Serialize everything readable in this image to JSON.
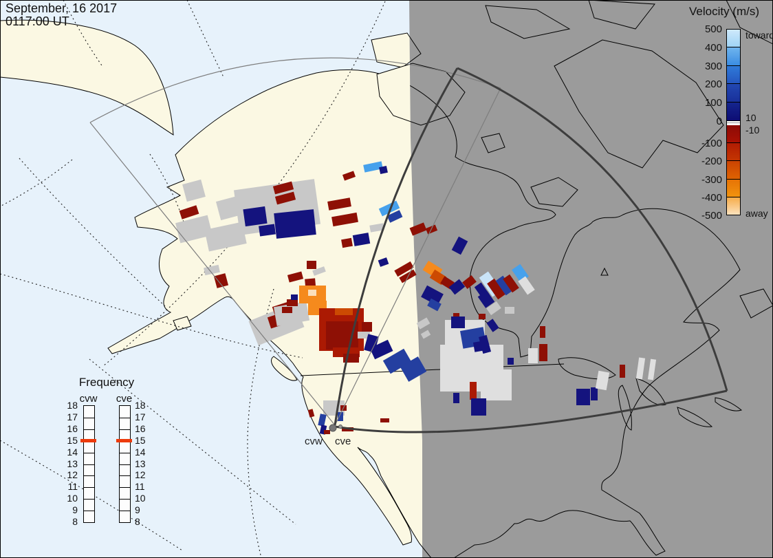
{
  "header": {
    "date_line": "September, 16 2017",
    "time_line": "0117:00 UT"
  },
  "velocity_legend": {
    "title": "Velocity (m/s)",
    "toward_label": "toward",
    "away_label": "away",
    "threshold_upper": "10",
    "threshold_lower": "-10",
    "tick_labels_toward": [
      "500",
      "400",
      "300",
      "200",
      "100",
      "0"
    ],
    "tick_labels_away": [
      "-100",
      "-200",
      "-300",
      "-400",
      "-500"
    ],
    "segments_toward": [
      [
        "#cfe9fb",
        "#9fd4f5"
      ],
      [
        "#6fb5ee",
        "#3a8ce2"
      ],
      [
        "#2f7ad8",
        "#2557c0"
      ],
      [
        "#2248b2",
        "#19309a"
      ],
      [
        "#15258e",
        "#0d0d74"
      ]
    ],
    "segments_away": [
      [
        "#8c0b06",
        "#a91104"
      ],
      [
        "#b21c03",
        "#c33502"
      ],
      [
        "#cc4302",
        "#de6302"
      ],
      [
        "#e77305",
        "#f1930f"
      ],
      [
        "#f6ac4a",
        "#fce2bd"
      ]
    ]
  },
  "frequency_panel": {
    "title": "Frequency",
    "columns": [
      "cvw",
      "cve"
    ],
    "scale_labels": [
      "18",
      "17",
      "16",
      "15",
      "14",
      "13",
      "12",
      "11",
      "10",
      "9",
      "8"
    ],
    "marker_tick_label": "15",
    "marker_color": "#ed3b0c"
  },
  "map": {
    "radar_labels": {
      "west": "cvw",
      "east": "cve"
    },
    "colors": {
      "day_ocean": "#e7f2fb",
      "day_land": "#fbf8e3",
      "night": "#9b9b9b",
      "coast": "#000000",
      "fov_thin": "#7d7d7d",
      "fov_thick": "#3d3d3d",
      "grid_dotted": "#222222"
    },
    "palette": {
      "n": "#14137e",
      "b": "#243fa0",
      "B": "#2f6fc0",
      "s": "#46a1ec",
      "p": "#c9e4f8",
      "d": "#8e1005",
      "r": "#ab1a03",
      "o": "#cc4a02",
      "O": "#f58a1d",
      "h": "#fbdfbc",
      "g": "#c8c8c8",
      "G": "#dfdfdf"
    },
    "cells": [
      [
        258,
        318,
        48,
        30,
        "g",
        -14
      ],
      [
        262,
        302,
        26,
        13,
        "d",
        -18
      ],
      [
        268,
        264,
        28,
        26,
        "g",
        -15
      ],
      [
        297,
        387,
        22,
        11,
        "g",
        -12
      ],
      [
        313,
        399,
        17,
        18,
        "d",
        -15
      ],
      [
        317,
        288,
        36,
        28,
        "g",
        -15
      ],
      [
        300,
        328,
        56,
        32,
        "g",
        -12
      ],
      [
        344,
        268,
        118,
        66,
        "g",
        -8
      ],
      [
        355,
        302,
        32,
        25,
        "n",
        -8
      ],
      [
        377,
        327,
        23,
        15,
        "n",
        -8
      ],
      [
        400,
        307,
        58,
        37,
        "n",
        -6
      ],
      [
        398,
        267,
        28,
        12,
        "d",
        -15
      ],
      [
        401,
        282,
        28,
        12,
        "d",
        -15
      ],
      [
        419,
        397,
        21,
        11,
        "d",
        -15
      ],
      [
        455,
        390,
        18,
        8,
        "g",
        -20
      ],
      [
        477,
        290,
        33,
        13,
        "d",
        -10
      ],
      [
        483,
        312,
        37,
        14,
        "d",
        -10
      ],
      [
        497,
        347,
        15,
        12,
        "d",
        -10
      ],
      [
        514,
        340,
        23,
        16,
        "n",
        -10
      ],
      [
        538,
        326,
        20,
        10,
        "g",
        -10
      ],
      [
        529,
        237,
        27,
        11,
        "s",
        -12
      ],
      [
        552,
        242,
        11,
        10,
        "n",
        -12
      ],
      [
        499,
        251,
        17,
        9,
        "d",
        -20
      ],
      [
        552,
        297,
        28,
        12,
        "s",
        -25
      ],
      [
        564,
        309,
        20,
        11,
        "b",
        -25
      ],
      [
        366,
        452,
        72,
        38,
        "g",
        -22
      ],
      [
        391,
        458,
        19,
        17,
        "d",
        -18
      ],
      [
        397,
        442,
        25,
        12,
        "d",
        -18
      ],
      [
        400,
        442,
        48,
        28,
        "g",
        -10
      ],
      [
        444,
        405,
        15,
        21,
        "d",
        -5
      ],
      [
        435,
        415,
        39,
        26,
        "O",
        0
      ],
      [
        448,
        437,
        27,
        21,
        "O",
        0
      ],
      [
        417,
        435,
        16,
        10,
        "d",
        0
      ],
      [
        423,
        428,
        10,
        8,
        "n",
        0
      ],
      [
        410,
        446,
        15,
        9,
        "d",
        0
      ],
      [
        446,
        379,
        14,
        12,
        "d",
        0
      ],
      [
        448,
        421,
        12,
        9,
        "h",
        0
      ],
      [
        464,
        448,
        65,
        62,
        "r",
        0
      ],
      [
        474,
        467,
        47,
        41,
        "d",
        0
      ],
      [
        487,
        448,
        26,
        10,
        "o",
        0
      ],
      [
        484,
        505,
        39,
        14,
        "r",
        0
      ],
      [
        499,
        514,
        23,
        13,
        "d",
        0
      ],
      [
        526,
        468,
        15,
        14,
        "d",
        0
      ],
      [
        520,
        482,
        18,
        10,
        "g",
        0
      ],
      [
        551,
        376,
        13,
        10,
        "n",
        -20
      ],
      [
        574,
        386,
        27,
        10,
        "d",
        -30
      ],
      [
        581,
        397,
        24,
        9,
        "d",
        -30
      ],
      [
        532,
        487,
        16,
        24,
        "n",
        15
      ],
      [
        540,
        499,
        29,
        18,
        "n",
        -25
      ],
      [
        560,
        514,
        35,
        22,
        "b",
        -30
      ],
      [
        586,
        524,
        30,
        25,
        "b",
        -30
      ],
      [
        607,
        465,
        17,
        10,
        "g",
        -30
      ],
      [
        613,
        482,
        12,
        8,
        "g",
        -30
      ],
      [
        470,
        582,
        31,
        22,
        "g",
        0
      ],
      [
        464,
        602,
        9,
        17,
        "b",
        12
      ],
      [
        466,
        618,
        8,
        13,
        "n",
        12
      ],
      [
        449,
        595,
        7,
        11,
        "d",
        -15
      ],
      [
        471,
        625,
        9,
        6,
        "d",
        0
      ],
      [
        495,
        589,
        9,
        8,
        "d",
        0
      ],
      [
        491,
        599,
        8,
        13,
        "b",
        0
      ],
      [
        497,
        621,
        17,
        6,
        "d",
        0
      ],
      [
        553,
        608,
        13,
        6,
        "d",
        0
      ],
      [
        597,
        327,
        22,
        12,
        "d",
        -22
      ],
      [
        620,
        329,
        15,
        9,
        "d",
        -22
      ],
      [
        661,
        346,
        15,
        22,
        "n",
        28
      ],
      [
        617,
        384,
        24,
        16,
        "O",
        32
      ],
      [
        627,
        396,
        20,
        14,
        "o",
        32
      ],
      [
        642,
        405,
        17,
        12,
        "d",
        32
      ],
      [
        615,
        420,
        27,
        19,
        "n",
        28
      ],
      [
        623,
        437,
        17,
        12,
        "b",
        28
      ],
      [
        655,
        410,
        19,
        14,
        "n",
        -38
      ],
      [
        674,
        404,
        17,
        12,
        "d",
        -38
      ],
      [
        695,
        412,
        12,
        22,
        "n",
        -35
      ],
      [
        705,
        396,
        16,
        34,
        "p",
        -35
      ],
      [
        715,
        406,
        13,
        28,
        "d",
        -35
      ],
      [
        727,
        402,
        13,
        26,
        "b",
        -35
      ],
      [
        737,
        400,
        12,
        24,
        "d",
        -35
      ],
      [
        749,
        386,
        15,
        22,
        "s",
        -35
      ],
      [
        759,
        403,
        13,
        24,
        "G",
        -35
      ],
      [
        699,
        425,
        16,
        20,
        "n",
        -35
      ],
      [
        709,
        442,
        18,
        12,
        "g",
        -35
      ],
      [
        734,
        446,
        14,
        10,
        "g",
        0
      ],
      [
        659,
        455,
        9,
        8,
        "d",
        0
      ],
      [
        696,
        456,
        10,
        8,
        "d",
        0
      ],
      [
        647,
        465,
        58,
        48,
        "G",
        0
      ],
      [
        640,
        501,
        92,
        68,
        "G",
        0
      ],
      [
        699,
        537,
        45,
        45,
        "G",
        0
      ],
      [
        656,
        460,
        20,
        17,
        "n",
        0
      ],
      [
        671,
        478,
        34,
        26,
        "b",
        -10
      ],
      [
        689,
        496,
        21,
        14,
        "n",
        -10
      ],
      [
        711,
        465,
        11,
        16,
        "n",
        -35
      ],
      [
        699,
        488,
        12,
        25,
        "n",
        -15
      ],
      [
        659,
        571,
        9,
        15,
        "n",
        0
      ],
      [
        683,
        555,
        10,
        26,
        "r",
        0
      ],
      [
        685,
        579,
        22,
        25,
        "n",
        0
      ],
      [
        785,
        474,
        8,
        17,
        "d",
        0
      ],
      [
        784,
        500,
        12,
        25,
        "d",
        0
      ],
      [
        768,
        506,
        14,
        22,
        "G",
        0
      ],
      [
        738,
        520,
        9,
        10,
        "n",
        0
      ],
      [
        838,
        565,
        20,
        24,
        "n",
        0
      ],
      [
        859,
        563,
        10,
        19,
        "n",
        0
      ],
      [
        868,
        540,
        16,
        26,
        "G",
        10
      ],
      [
        901,
        530,
        8,
        19,
        "d",
        0
      ],
      [
        927,
        520,
        9,
        31,
        "G",
        8
      ],
      [
        944,
        522,
        8,
        30,
        "G",
        8
      ]
    ]
  }
}
